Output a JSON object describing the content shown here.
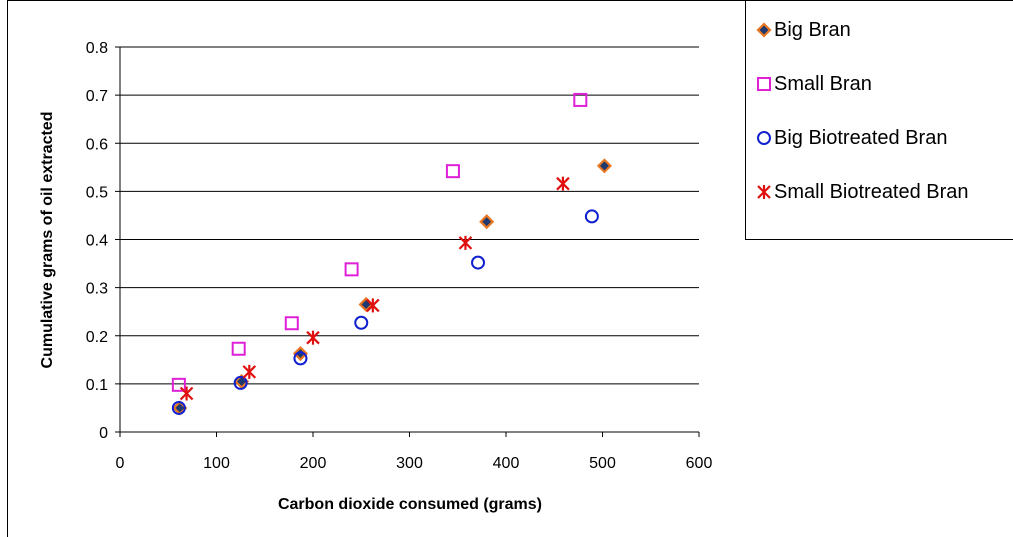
{
  "chart_data": {
    "type": "scatter",
    "title": "",
    "xlabel": "Carbon dioxide consumed (grams)",
    "ylabel": "Cumulative grams of oil extracted",
    "xlim": [
      0,
      600
    ],
    "ylim": [
      0,
      0.8
    ],
    "x_ticks": [
      "0",
      "100",
      "200",
      "300",
      "400",
      "500",
      "600"
    ],
    "y_ticks": [
      "0",
      "0.1",
      "0.2",
      "0.3",
      "0.4",
      "0.5",
      "0.6",
      "0.7",
      "0.8"
    ],
    "grid": "horizontal major gridlines",
    "legend_position": "right",
    "series": [
      {
        "name": "Big Bran",
        "marker": "diamond",
        "color": "#E87722",
        "fill": "#1F3A6E",
        "x": [
          62,
          126,
          187,
          255,
          380,
          502
        ],
        "y": [
          0.05,
          0.105,
          0.163,
          0.265,
          0.437,
          0.553
        ]
      },
      {
        "name": "Small Bran",
        "marker": "square",
        "color": "#E020D8",
        "x": [
          61,
          123,
          178,
          240,
          345,
          477
        ],
        "y": [
          0.098,
          0.173,
          0.226,
          0.338,
          0.542,
          0.69
        ]
      },
      {
        "name": "Big Biotreated Bran",
        "marker": "circle",
        "color": "#1020D0",
        "x": [
          61,
          125,
          187,
          250,
          371,
          489
        ],
        "y": [
          0.05,
          0.102,
          0.153,
          0.227,
          0.352,
          0.448
        ]
      },
      {
        "name": "Small Biotreated Bran",
        "marker": "asterisk",
        "color": "#E01010",
        "x": [
          69,
          134,
          200,
          262,
          358,
          459
        ],
        "y": [
          0.08,
          0.125,
          0.196,
          0.263,
          0.393,
          0.516
        ]
      }
    ]
  }
}
